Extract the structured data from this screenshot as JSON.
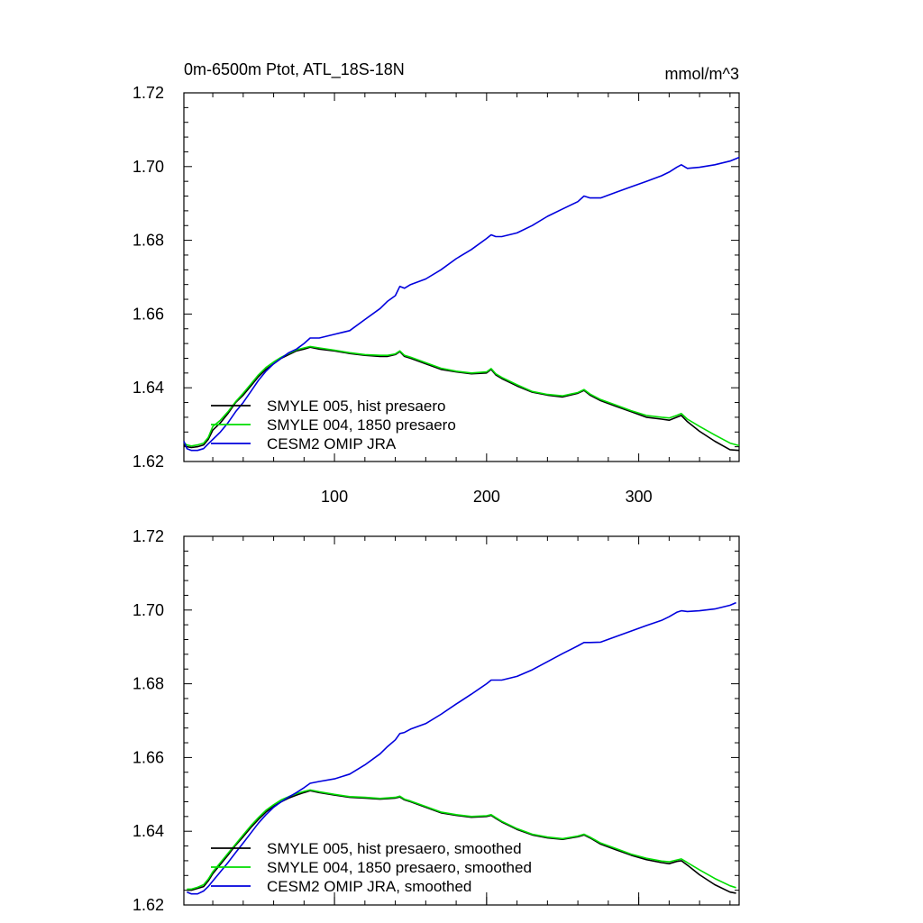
{
  "figure": {
    "title_left": "0m-6500m Ptot, ATL_18S-18N",
    "title_right": "mmol/m^3"
  },
  "chart_data": [
    {
      "type": "line",
      "title": "0m-6500m Ptot, ATL_18S-18N",
      "units": "mmol/m^3",
      "xlim": [
        1,
        366
      ],
      "ylim": [
        1.62,
        1.72
      ],
      "yticks": [
        "1.62",
        "1.64",
        "1.66",
        "1.68",
        "1.70",
        "1.72"
      ],
      "xticks": [
        "100",
        "200",
        "300"
      ],
      "grid": false,
      "legend_position": "bottom-left",
      "series": [
        {
          "name": "SMYLE 005, hist presaero",
          "color": "#000000",
          "x": [
            1,
            3,
            6,
            10,
            14,
            17,
            20,
            25,
            30,
            35,
            40,
            45,
            50,
            55,
            60,
            65,
            70,
            75,
            80,
            84,
            90,
            100,
            110,
            120,
            130,
            135,
            140,
            143,
            146,
            150,
            160,
            170,
            180,
            190,
            200,
            203,
            206,
            210,
            220,
            230,
            240,
            250,
            260,
            264,
            268,
            275,
            285,
            295,
            305,
            315,
            320,
            325,
            328,
            332,
            340,
            350,
            360,
            366
          ],
          "y": [
            1.6245,
            1.624,
            1.6238,
            1.624,
            1.6245,
            1.626,
            1.6285,
            1.6305,
            1.633,
            1.636,
            1.638,
            1.6405,
            1.643,
            1.645,
            1.6465,
            1.648,
            1.649,
            1.65,
            1.6505,
            1.651,
            1.6505,
            1.65,
            1.6493,
            1.6488,
            1.6485,
            1.6485,
            1.649,
            1.6498,
            1.6485,
            1.648,
            1.6465,
            1.645,
            1.6443,
            1.6438,
            1.644,
            1.645,
            1.6435,
            1.6425,
            1.6405,
            1.6388,
            1.638,
            1.6375,
            1.6385,
            1.6393,
            1.638,
            1.6365,
            1.635,
            1.6335,
            1.632,
            1.6315,
            1.6312,
            1.632,
            1.6325,
            1.6308,
            1.6282,
            1.6255,
            1.6232,
            1.623
          ]
        },
        {
          "name": "SMYLE 004, 1850 presaero",
          "color": "#00dd00",
          "x": [
            1,
            3,
            6,
            10,
            14,
            17,
            20,
            25,
            30,
            35,
            40,
            45,
            50,
            55,
            60,
            65,
            70,
            75,
            80,
            84,
            90,
            100,
            110,
            120,
            130,
            135,
            140,
            143,
            146,
            150,
            160,
            170,
            180,
            190,
            200,
            203,
            206,
            210,
            220,
            230,
            240,
            250,
            260,
            264,
            268,
            275,
            285,
            295,
            305,
            315,
            320,
            325,
            328,
            332,
            340,
            350,
            360,
            366
          ],
          "y": [
            1.625,
            1.6245,
            1.6242,
            1.6245,
            1.625,
            1.6265,
            1.6295,
            1.6312,
            1.6335,
            1.6362,
            1.6385,
            1.641,
            1.6435,
            1.6455,
            1.647,
            1.6483,
            1.6493,
            1.6503,
            1.6508,
            1.6512,
            1.6508,
            1.6502,
            1.6495,
            1.649,
            1.6488,
            1.6488,
            1.6492,
            1.65,
            1.6488,
            1.6483,
            1.6468,
            1.6453,
            1.6445,
            1.644,
            1.6443,
            1.6452,
            1.6438,
            1.6428,
            1.6408,
            1.639,
            1.6382,
            1.6378,
            1.6387,
            1.6395,
            1.6383,
            1.6368,
            1.6353,
            1.6338,
            1.6325,
            1.632,
            1.6318,
            1.6325,
            1.633,
            1.6315,
            1.6295,
            1.6272,
            1.625,
            1.6243
          ]
        },
        {
          "name": "CESM2 OMIP JRA",
          "color": "#0000dd",
          "x": [
            1,
            3,
            6,
            10,
            14,
            17,
            20,
            25,
            30,
            35,
            40,
            45,
            50,
            55,
            60,
            65,
            70,
            75,
            80,
            84,
            90,
            100,
            110,
            120,
            130,
            135,
            140,
            143,
            146,
            150,
            160,
            170,
            180,
            190,
            200,
            203,
            206,
            210,
            220,
            230,
            240,
            250,
            260,
            264,
            268,
            275,
            285,
            295,
            305,
            315,
            320,
            325,
            328,
            332,
            340,
            350,
            360,
            366
          ],
          "y": [
            1.6255,
            1.6235,
            1.623,
            1.623,
            1.6235,
            1.6248,
            1.626,
            1.628,
            1.6305,
            1.6335,
            1.636,
            1.639,
            1.642,
            1.6445,
            1.6465,
            1.648,
            1.6495,
            1.6505,
            1.652,
            1.6535,
            1.6535,
            1.6545,
            1.6555,
            1.6585,
            1.6615,
            1.6635,
            1.665,
            1.6675,
            1.667,
            1.668,
            1.6695,
            1.672,
            1.675,
            1.6775,
            1.6805,
            1.6815,
            1.681,
            1.681,
            1.682,
            1.684,
            1.6865,
            1.6885,
            1.6905,
            1.692,
            1.6915,
            1.6915,
            1.693,
            1.6945,
            1.696,
            1.6975,
            1.6985,
            1.6998,
            1.7005,
            1.6995,
            1.6998,
            1.7005,
            1.7015,
            1.7025
          ]
        }
      ]
    },
    {
      "type": "line",
      "xlim": [
        1,
        366
      ],
      "ylim": [
        1.62,
        1.72
      ],
      "yticks": [
        "1.62",
        "1.64",
        "1.66",
        "1.68",
        "1.70",
        "1.72"
      ],
      "grid": false,
      "legend_position": "bottom-left",
      "series": [
        {
          "name": "SMYLE 005, hist presaero, smoothed",
          "color": "#000000",
          "x": [
            3,
            6,
            10,
            14,
            17,
            20,
            25,
            30,
            35,
            40,
            45,
            50,
            55,
            60,
            65,
            70,
            75,
            80,
            84,
            90,
            100,
            110,
            120,
            130,
            140,
            143,
            146,
            150,
            160,
            170,
            180,
            190,
            200,
            203,
            206,
            210,
            220,
            230,
            240,
            250,
            260,
            264,
            268,
            275,
            285,
            295,
            305,
            315,
            320,
            325,
            328,
            332,
            340,
            350,
            360,
            364
          ],
          "y": [
            1.624,
            1.624,
            1.6245,
            1.625,
            1.6265,
            1.6285,
            1.631,
            1.6335,
            1.6362,
            1.6385,
            1.641,
            1.6432,
            1.6452,
            1.6468,
            1.648,
            1.649,
            1.6498,
            1.6505,
            1.651,
            1.6505,
            1.6498,
            1.6492,
            1.649,
            1.6487,
            1.649,
            1.6493,
            1.6485,
            1.648,
            1.6465,
            1.645,
            1.6443,
            1.6438,
            1.644,
            1.6443,
            1.6435,
            1.6425,
            1.6405,
            1.639,
            1.6382,
            1.6378,
            1.6385,
            1.639,
            1.6382,
            1.6365,
            1.635,
            1.6335,
            1.6323,
            1.6315,
            1.6312,
            1.6318,
            1.632,
            1.6308,
            1.6282,
            1.6255,
            1.6235,
            1.6232
          ]
        },
        {
          "name": "SMYLE 004, 1850 presaero, smoothed",
          "color": "#00dd00",
          "x": [
            3,
            6,
            10,
            14,
            17,
            20,
            25,
            30,
            35,
            40,
            45,
            50,
            55,
            60,
            65,
            70,
            75,
            80,
            84,
            90,
            100,
            110,
            120,
            130,
            140,
            143,
            146,
            150,
            160,
            170,
            180,
            190,
            200,
            203,
            206,
            210,
            220,
            230,
            240,
            250,
            260,
            264,
            268,
            275,
            285,
            295,
            305,
            315,
            320,
            325,
            328,
            332,
            340,
            350,
            360,
            364
          ],
          "y": [
            1.6243,
            1.6243,
            1.6248,
            1.6255,
            1.627,
            1.629,
            1.6315,
            1.634,
            1.6365,
            1.639,
            1.6415,
            1.6437,
            1.6457,
            1.6472,
            1.6485,
            1.6494,
            1.6502,
            1.6508,
            1.6512,
            1.6507,
            1.65,
            1.6494,
            1.6492,
            1.6489,
            1.6492,
            1.6495,
            1.6487,
            1.6482,
            1.6467,
            1.6452,
            1.6445,
            1.644,
            1.6442,
            1.6445,
            1.6437,
            1.6427,
            1.6407,
            1.6392,
            1.6384,
            1.638,
            1.6387,
            1.6392,
            1.6384,
            1.6368,
            1.6353,
            1.6338,
            1.6327,
            1.6319,
            1.6317,
            1.6322,
            1.6325,
            1.6315,
            1.6295,
            1.6272,
            1.6252,
            1.6247
          ]
        },
        {
          "name": "CESM2 OMIP JRA, smoothed",
          "color": "#0000dd",
          "x": [
            3,
            6,
            10,
            14,
            17,
            20,
            25,
            30,
            35,
            40,
            45,
            50,
            55,
            60,
            65,
            70,
            75,
            80,
            84,
            90,
            100,
            110,
            120,
            130,
            135,
            140,
            143,
            146,
            150,
            160,
            170,
            180,
            190,
            200,
            203,
            206,
            210,
            220,
            230,
            240,
            250,
            260,
            264,
            268,
            275,
            285,
            295,
            305,
            315,
            320,
            325,
            328,
            332,
            340,
            350,
            360,
            364
          ],
          "y": [
            1.6235,
            1.623,
            1.623,
            1.6238,
            1.625,
            1.6265,
            1.629,
            1.6315,
            1.6342,
            1.6368,
            1.6395,
            1.6422,
            1.6445,
            1.6465,
            1.648,
            1.6493,
            1.6505,
            1.6518,
            1.653,
            1.6535,
            1.6542,
            1.6555,
            1.658,
            1.661,
            1.663,
            1.6648,
            1.6665,
            1.6668,
            1.6677,
            1.6692,
            1.6717,
            1.6745,
            1.6772,
            1.68,
            1.681,
            1.681,
            1.681,
            1.682,
            1.6838,
            1.686,
            1.6882,
            1.6903,
            1.6912,
            1.6912,
            1.6913,
            1.6928,
            1.6943,
            1.6958,
            1.6972,
            1.6982,
            1.6994,
            1.6998,
            1.6996,
            1.6998,
            1.7003,
            1.7013,
            1.702
          ]
        }
      ]
    }
  ]
}
